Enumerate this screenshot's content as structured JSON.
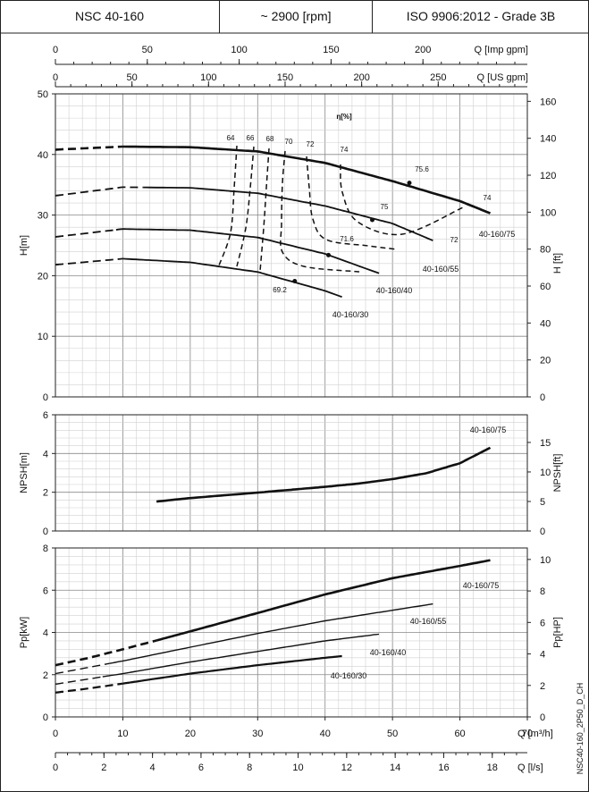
{
  "header": {
    "model": "NSC 40-160",
    "speed": "~ 2900 [rpm]",
    "standard": "ISO 9906:2012 - Grade 3B"
  },
  "footer_code": "NSC40-160_2P50_D_CH",
  "chart_data": [
    {
      "type": "line",
      "panel": "head",
      "ylabel_left": "H[m]",
      "ylabel_right": "H [ft]",
      "ylim": [
        0,
        50
      ],
      "yticks_left": [
        "0",
        "10",
        "20",
        "30",
        "40",
        "50"
      ],
      "yticks_right": [
        "0",
        "20",
        "40",
        "60",
        "80",
        "100",
        "120",
        "140",
        "160"
      ],
      "ylim_right_ft": [
        0,
        164.04
      ],
      "xlim_m3h": [
        0,
        70
      ],
      "grid": true,
      "top_axes": [
        {
          "label": "Q [Imp gpm]",
          "ticks": [
            "0",
            "50",
            "100",
            "150",
            "200"
          ],
          "max": 256.8
        },
        {
          "label": "Q [US gpm]",
          "ticks": [
            "0",
            "50",
            "100",
            "150",
            "200",
            "250"
          ],
          "max": 308.2
        }
      ],
      "series": [
        {
          "name": "40-160/75",
          "x": [
            0,
            10,
            20,
            30,
            40,
            50,
            60,
            64.5
          ],
          "y": [
            40.8,
            41.3,
            41.2,
            40.5,
            38.6,
            35.6,
            32.3,
            30.3
          ],
          "dashed_until": 10
        },
        {
          "name": "40-160/55",
          "x": [
            0,
            10,
            20,
            30,
            40,
            50,
            56
          ],
          "y": [
            33.2,
            34.6,
            34.5,
            33.6,
            31.5,
            28.6,
            25.8
          ],
          "dashed_until": 13
        },
        {
          "name": "40-160/40",
          "x": [
            0,
            10,
            20,
            30,
            40,
            48
          ],
          "y": [
            26.4,
            27.7,
            27.5,
            26.3,
            23.6,
            20.4
          ],
          "dashed_until": 9
        },
        {
          "name": "40-160/30",
          "x": [
            0,
            10,
            20,
            30,
            40,
            42.5
          ],
          "y": [
            21.8,
            22.8,
            22.2,
            20.6,
            17.5,
            16.5
          ],
          "dashed_until": 10
        }
      ],
      "efficiency_title": "η[%]",
      "efficiency_labels": [
        "64",
        "66",
        "68",
        "70",
        "72",
        "74",
        "75.6",
        "75",
        "74",
        "72",
        "71.6",
        "69.2"
      ],
      "efficiency_points": [
        {
          "label": "75.6",
          "x": 52.5,
          "y": 35.3
        },
        {
          "label": "75",
          "x": 47,
          "y": 29.2
        },
        {
          "label": "71.6",
          "x": 40.5,
          "y": 23.4
        },
        {
          "label": "69.2",
          "x": 35.5,
          "y": 19.1
        }
      ],
      "curve_labels": [
        "40-160/75",
        "40-160/55",
        "40-160/40",
        "40-160/30"
      ]
    },
    {
      "type": "line",
      "panel": "npsh",
      "ylabel_left": "NPSH[m]",
      "ylabel_right": "NPSH[ft]",
      "ylim": [
        0,
        6
      ],
      "yticks_left": [
        "0",
        "2",
        "4",
        "6"
      ],
      "yticks_right": [
        "0",
        "5",
        "10",
        "15"
      ],
      "ylim_right_ft": [
        0,
        19.685
      ],
      "series": [
        {
          "name": "40-160/75",
          "x": [
            15,
            20,
            30,
            40,
            45,
            50,
            55,
            60,
            64.5
          ],
          "y": [
            1.52,
            1.7,
            1.98,
            2.28,
            2.45,
            2.68,
            2.98,
            3.5,
            4.3
          ]
        }
      ]
    },
    {
      "type": "line",
      "panel": "power",
      "ylabel_left": "Pp[kW]",
      "ylabel_right": "Pp[HP]",
      "ylim": [
        0,
        8
      ],
      "yticks_left": [
        "0",
        "2",
        "4",
        "6",
        "8"
      ],
      "yticks_right": [
        "0",
        "2",
        "4",
        "6",
        "8",
        "10"
      ],
      "ylim_right_hp": [
        0,
        10.73
      ],
      "xlabel": "Q [m³/h]",
      "xticks": [
        "0",
        "10",
        "20",
        "30",
        "40",
        "50",
        "60",
        "70"
      ],
      "xlabel2": "Q [l/s]",
      "xticks2": [
        "0",
        "2",
        "4",
        "6",
        "8",
        "10",
        "12",
        "14",
        "16",
        "18"
      ],
      "series": [
        {
          "name": "40-160/75",
          "x": [
            0,
            5,
            10,
            15,
            20,
            30,
            40,
            50,
            60,
            64.5
          ],
          "y": [
            2.45,
            2.8,
            3.2,
            3.62,
            4.05,
            4.92,
            5.8,
            6.57,
            7.15,
            7.42
          ],
          "dashed_until": 15
        },
        {
          "name": "40-160/55",
          "x": [
            0,
            5,
            10,
            20,
            30,
            40,
            50,
            56
          ],
          "y": [
            2.05,
            2.35,
            2.65,
            3.3,
            3.95,
            4.55,
            5.05,
            5.35
          ],
          "dashed_until": 8
        },
        {
          "name": "40-160/40",
          "x": [
            0,
            5,
            10,
            20,
            30,
            40,
            48
          ],
          "y": [
            1.55,
            1.8,
            2.05,
            2.6,
            3.1,
            3.6,
            3.92
          ],
          "dashed_until": 7
        },
        {
          "name": "40-160/30",
          "x": [
            0,
            5,
            10,
            20,
            30,
            40,
            42.5
          ],
          "y": [
            1.15,
            1.35,
            1.58,
            2.05,
            2.45,
            2.8,
            2.88
          ],
          "dashed_until": 10
        }
      ],
      "curve_labels": [
        "40-160/75",
        "40-160/55",
        "40-160/40",
        "40-160/30"
      ]
    }
  ]
}
